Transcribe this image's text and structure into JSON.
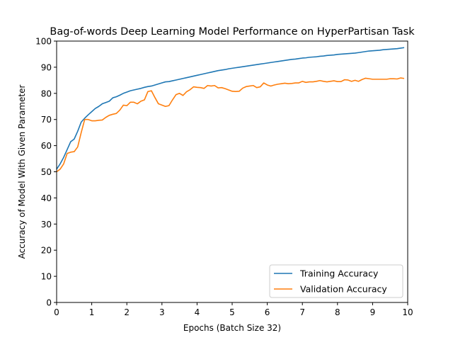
{
  "chart_data": {
    "type": "line",
    "title": "Bag-of-words Deep Learning Model Performance on HyperPartisan Task",
    "xlabel": "Epochs (Batch Size 32)",
    "ylabel": "Accuracy of Model With Given Parameter",
    "xlim": [
      0,
      10
    ],
    "ylim": [
      0,
      100
    ],
    "xticks": [
      0,
      1,
      2,
      3,
      4,
      5,
      6,
      7,
      8,
      9,
      10
    ],
    "yticks": [
      0,
      10,
      20,
      30,
      40,
      50,
      60,
      70,
      80,
      90,
      100
    ],
    "grid": false,
    "legend_position": "lower-right",
    "series": [
      {
        "name": "Training Accuracy",
        "color": "#1f77b4",
        "x": [
          0,
          0.1,
          0.2,
          0.3,
          0.4,
          0.5,
          0.6,
          0.7,
          0.8,
          0.9,
          1.0,
          1.1,
          1.2,
          1.3,
          1.4,
          1.5,
          1.6,
          1.7,
          1.8,
          1.9,
          2.0,
          2.1,
          2.2,
          2.3,
          2.4,
          2.5,
          2.6,
          2.7,
          2.8,
          2.9,
          3.0,
          3.1,
          3.2,
          3.3,
          3.4,
          3.5,
          3.6,
          3.7,
          3.8,
          3.9,
          4.0,
          4.1,
          4.2,
          4.3,
          4.4,
          4.5,
          4.6,
          4.7,
          4.8,
          4.9,
          5.0,
          5.1,
          5.2,
          5.3,
          5.4,
          5.5,
          5.6,
          5.7,
          5.8,
          5.9,
          6.0,
          6.1,
          6.2,
          6.3,
          6.4,
          6.5,
          6.6,
          6.7,
          6.8,
          6.9,
          7.0,
          7.1,
          7.2,
          7.3,
          7.4,
          7.5,
          7.6,
          7.7,
          7.8,
          7.9,
          8.0,
          8.1,
          8.2,
          8.3,
          8.4,
          8.5,
          8.6,
          8.7,
          8.8,
          8.9,
          9.0,
          9.1,
          9.2,
          9.3,
          9.4,
          9.5,
          9.6,
          9.7,
          9.8,
          9.9
        ],
        "y": [
          51.0,
          53.0,
          55.5,
          58.5,
          61.5,
          62.5,
          65.5,
          69.0,
          70.5,
          71.8,
          73.0,
          74.2,
          75.0,
          76.0,
          76.5,
          77.0,
          78.3,
          78.7,
          79.3,
          80.0,
          80.5,
          81.0,
          81.3,
          81.6,
          81.9,
          82.3,
          82.6,
          82.8,
          83.2,
          83.6,
          84.0,
          84.4,
          84.5,
          84.8,
          85.1,
          85.4,
          85.7,
          86.0,
          86.3,
          86.6,
          86.9,
          87.2,
          87.5,
          87.8,
          88.1,
          88.4,
          88.7,
          88.9,
          89.1,
          89.4,
          89.6,
          89.8,
          90.0,
          90.2,
          90.4,
          90.6,
          90.8,
          91.0,
          91.2,
          91.4,
          91.6,
          91.8,
          92.0,
          92.2,
          92.4,
          92.6,
          92.8,
          93.0,
          93.1,
          93.3,
          93.5,
          93.6,
          93.8,
          93.9,
          94.0,
          94.2,
          94.3,
          94.5,
          94.6,
          94.7,
          94.9,
          95.0,
          95.1,
          95.2,
          95.3,
          95.4,
          95.6,
          95.8,
          96.0,
          96.2,
          96.3,
          96.4,
          96.5,
          96.7,
          96.8,
          96.9,
          97.0,
          97.1,
          97.3,
          97.5
        ]
      },
      {
        "name": "Validation Accuracy",
        "color": "#ff7f0e",
        "x": [
          0,
          0.1,
          0.2,
          0.3,
          0.4,
          0.5,
          0.6,
          0.7,
          0.8,
          0.9,
          1.0,
          1.1,
          1.2,
          1.3,
          1.4,
          1.5,
          1.6,
          1.7,
          1.8,
          1.9,
          2.0,
          2.1,
          2.2,
          2.3,
          2.4,
          2.5,
          2.6,
          2.7,
          2.8,
          2.9,
          3.0,
          3.1,
          3.2,
          3.3,
          3.4,
          3.5,
          3.6,
          3.7,
          3.8,
          3.9,
          4.0,
          4.1,
          4.2,
          4.3,
          4.4,
          4.5,
          4.6,
          4.7,
          4.8,
          4.9,
          5.0,
          5.1,
          5.2,
          5.3,
          5.4,
          5.5,
          5.6,
          5.7,
          5.8,
          5.9,
          6.0,
          6.1,
          6.2,
          6.3,
          6.4,
          6.5,
          6.6,
          6.7,
          6.8,
          6.9,
          7.0,
          7.1,
          7.2,
          7.3,
          7.4,
          7.5,
          7.6,
          7.7,
          7.8,
          7.9,
          8.0,
          8.1,
          8.2,
          8.3,
          8.4,
          8.5,
          8.6,
          8.7,
          8.8,
          8.9,
          9.0,
          9.1,
          9.2,
          9.3,
          9.4,
          9.5,
          9.6,
          9.7,
          9.8,
          9.9
        ],
        "y": [
          50.0,
          51.0,
          53.0,
          57.0,
          57.5,
          57.7,
          59.5,
          65.0,
          70.0,
          70.0,
          69.5,
          69.5,
          69.7,
          69.8,
          70.8,
          71.6,
          72.0,
          72.3,
          73.6,
          75.5,
          75.3,
          76.6,
          76.6,
          76.0,
          77.0,
          77.5,
          80.7,
          81.0,
          78.4,
          76.0,
          75.5,
          75.0,
          75.3,
          77.5,
          79.5,
          80.0,
          79.2,
          80.6,
          81.4,
          82.5,
          82.3,
          82.2,
          81.9,
          83.0,
          82.8,
          83.0,
          82.1,
          82.2,
          81.8,
          81.3,
          80.8,
          80.7,
          80.8,
          82.0,
          82.6,
          82.8,
          83.0,
          82.2,
          82.5,
          84.0,
          83.2,
          82.8,
          83.2,
          83.5,
          83.7,
          83.9,
          83.7,
          83.8,
          84.0,
          84.0,
          84.6,
          84.2,
          84.4,
          84.4,
          84.6,
          84.9,
          84.6,
          84.4,
          84.6,
          84.8,
          84.5,
          84.5,
          85.2,
          85.1,
          84.6,
          85.0,
          84.6,
          85.3,
          85.8,
          85.6,
          85.4,
          85.4,
          85.4,
          85.4,
          85.4,
          85.6,
          85.6,
          85.5,
          85.9,
          85.7
        ]
      }
    ]
  }
}
